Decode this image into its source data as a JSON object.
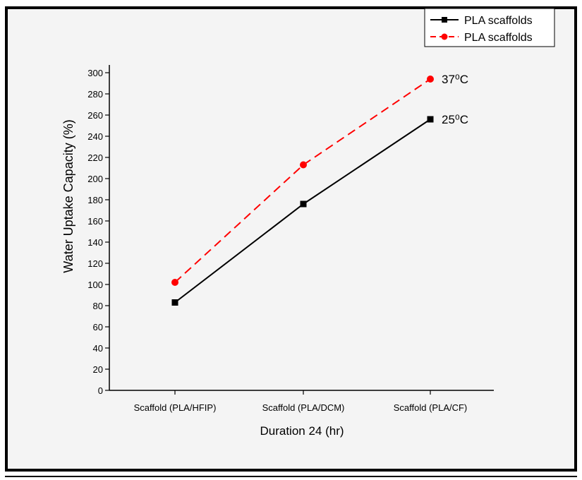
{
  "chart_data": {
    "type": "line",
    "title": "",
    "xlabel": "Duration 24 (hr)",
    "ylabel": "Water Uptake Capacity (%)",
    "categories": [
      "Scaffold (PLA/HFIP)",
      "Scaffold (PLA/DCM)",
      "Scaffold (PLA/CF)"
    ],
    "ylim": [
      0,
      300
    ],
    "yticks": [
      0,
      20,
      40,
      60,
      80,
      100,
      120,
      140,
      160,
      180,
      200,
      220,
      240,
      260,
      280,
      300
    ],
    "grid": false,
    "legend_position": "top-right",
    "series": [
      {
        "name": "PLA scaffolds",
        "values": [
          83,
          176,
          256
        ],
        "color": "#000000",
        "dash": "solid",
        "marker": "square",
        "annotation": "25⁰C"
      },
      {
        "name": "PLA scaffolds",
        "values": [
          102,
          213,
          294
        ],
        "color": "#ff0000",
        "dash": "dashed",
        "marker": "circle",
        "annotation": "37⁰C"
      }
    ]
  }
}
